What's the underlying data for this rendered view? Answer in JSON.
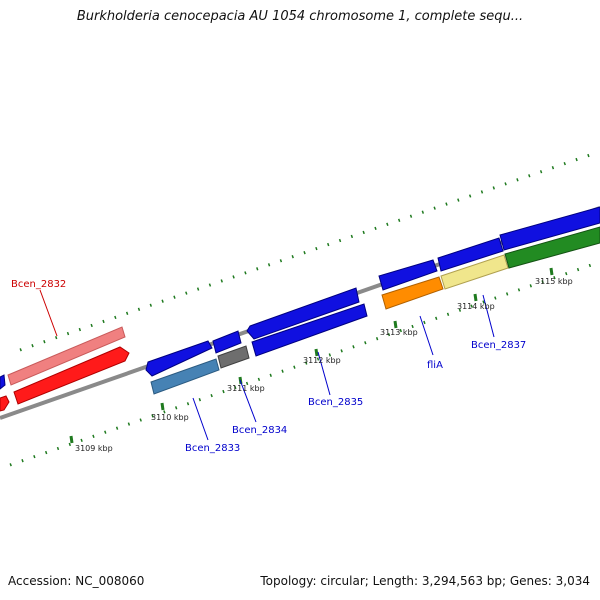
{
  "title": "Burkholderia cenocepacia AU 1054 chromosome 1, complete sequ...",
  "footer": {
    "accession": "Accession: NC_008060",
    "summary": "Topology: circular; Length: 3,294,563 bp; Genes: 3,034"
  },
  "colors": {
    "backbone": "#8a8a8a",
    "tick": "#1f7a1f",
    "label_red": "#cc0000",
    "label_blue": "#0000cc"
  },
  "kbp_labels": [
    "3109 kbp",
    "3110 kbp",
    "3111 kbp",
    "3112 kbp",
    "3113 kbp",
    "3114 kbp",
    "3115 kbp"
  ],
  "gene_labels": {
    "bcen_2832": "Bcen_2832",
    "bcen_2833": "Bcen_2833",
    "bcen_2834": "Bcen_2834",
    "bcen_2835": "Bcen_2835",
    "flia": "fliA",
    "bcen_2837": "Bcen_2837"
  },
  "features": [
    {
      "name": "gene-3109-red",
      "color": "#ff1a1a"
    },
    {
      "name": "gene-3109-pink",
      "color": "#f08080"
    },
    {
      "name": "gene-2833-blue",
      "color": "#1010e0"
    },
    {
      "name": "gene-2833-steel",
      "color": "#4682b4"
    },
    {
      "name": "gene-2834-blue",
      "color": "#1010e0"
    },
    {
      "name": "gene-2834-gray",
      "color": "#6e6e6e"
    },
    {
      "name": "gene-2835-top",
      "color": "#1010e0"
    },
    {
      "name": "gene-2835-bottom",
      "color": "#1010e0"
    },
    {
      "name": "gene-flia-blue",
      "color": "#1010e0"
    },
    {
      "name": "gene-flia-orange",
      "color": "#ff8c00"
    },
    {
      "name": "gene-2837-blue",
      "color": "#1010e0"
    },
    {
      "name": "gene-2837-khaki",
      "color": "#f0e68c"
    },
    {
      "name": "gene-3115-blue",
      "color": "#1010e0"
    },
    {
      "name": "gene-3115-green",
      "color": "#228b22"
    }
  ]
}
